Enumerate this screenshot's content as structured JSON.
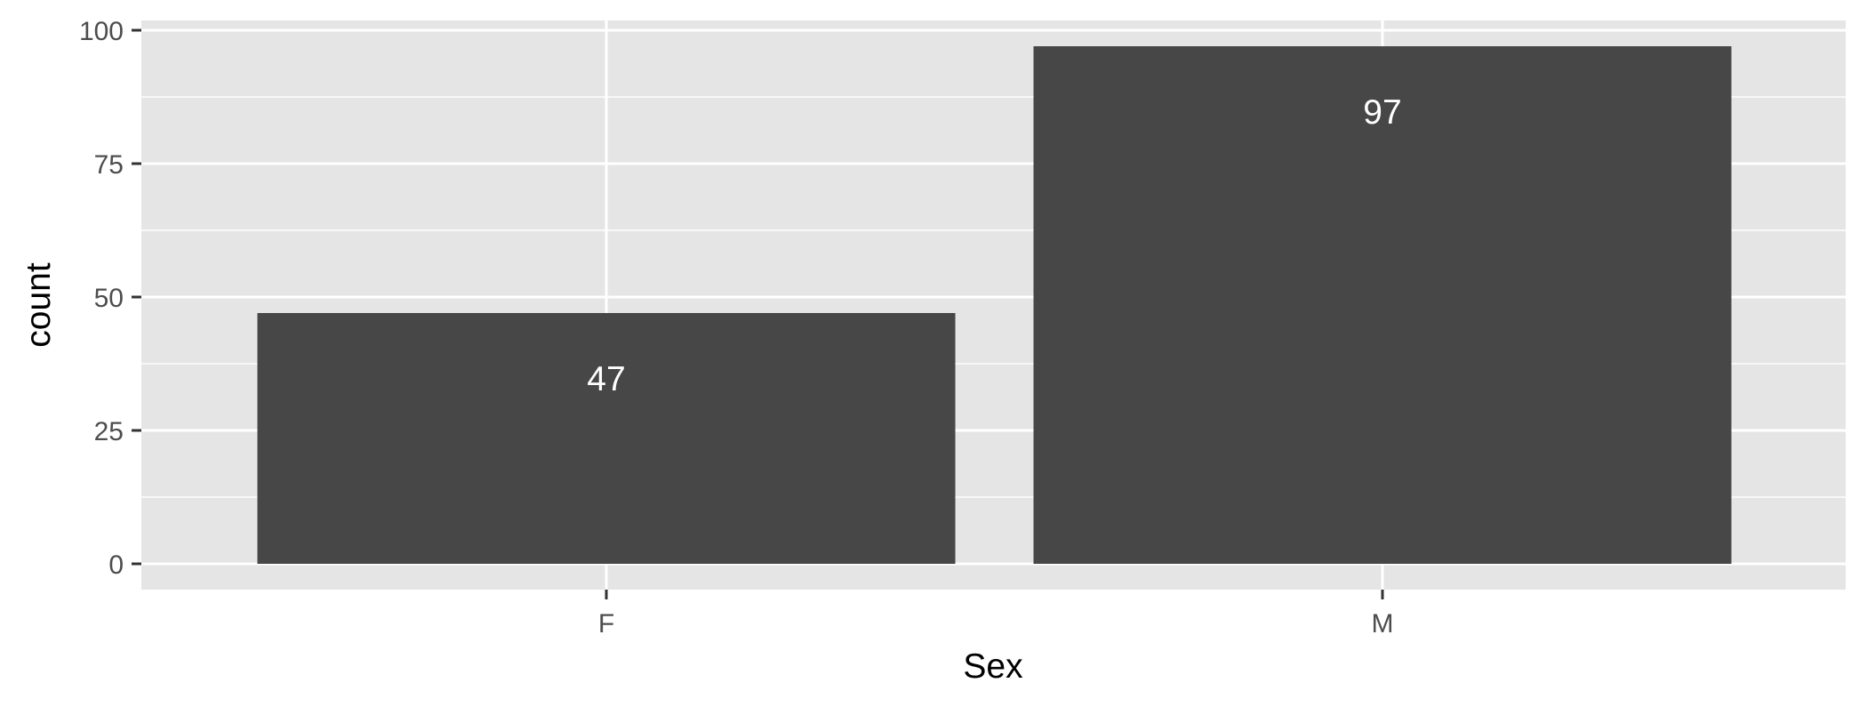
{
  "chart_data": {
    "type": "bar",
    "categories": [
      "F",
      "M"
    ],
    "values": [
      47,
      97
    ],
    "data_labels": [
      "47",
      "97"
    ],
    "title": "",
    "xlabel": "Sex",
    "ylabel": "count",
    "ylim": [
      0,
      100
    ],
    "y_ticks": [
      0,
      25,
      50,
      75,
      100
    ],
    "y_tick_labels": [
      "0",
      "25",
      "50",
      "75",
      "100"
    ],
    "grid": true,
    "legend": "none"
  },
  "colors": {
    "panel_background": "#e5e5e5",
    "grid_major": "#ffffff",
    "bar_fill": "#474747",
    "tick_label": "#4d4d4d",
    "data_label": "#ffffff"
  }
}
